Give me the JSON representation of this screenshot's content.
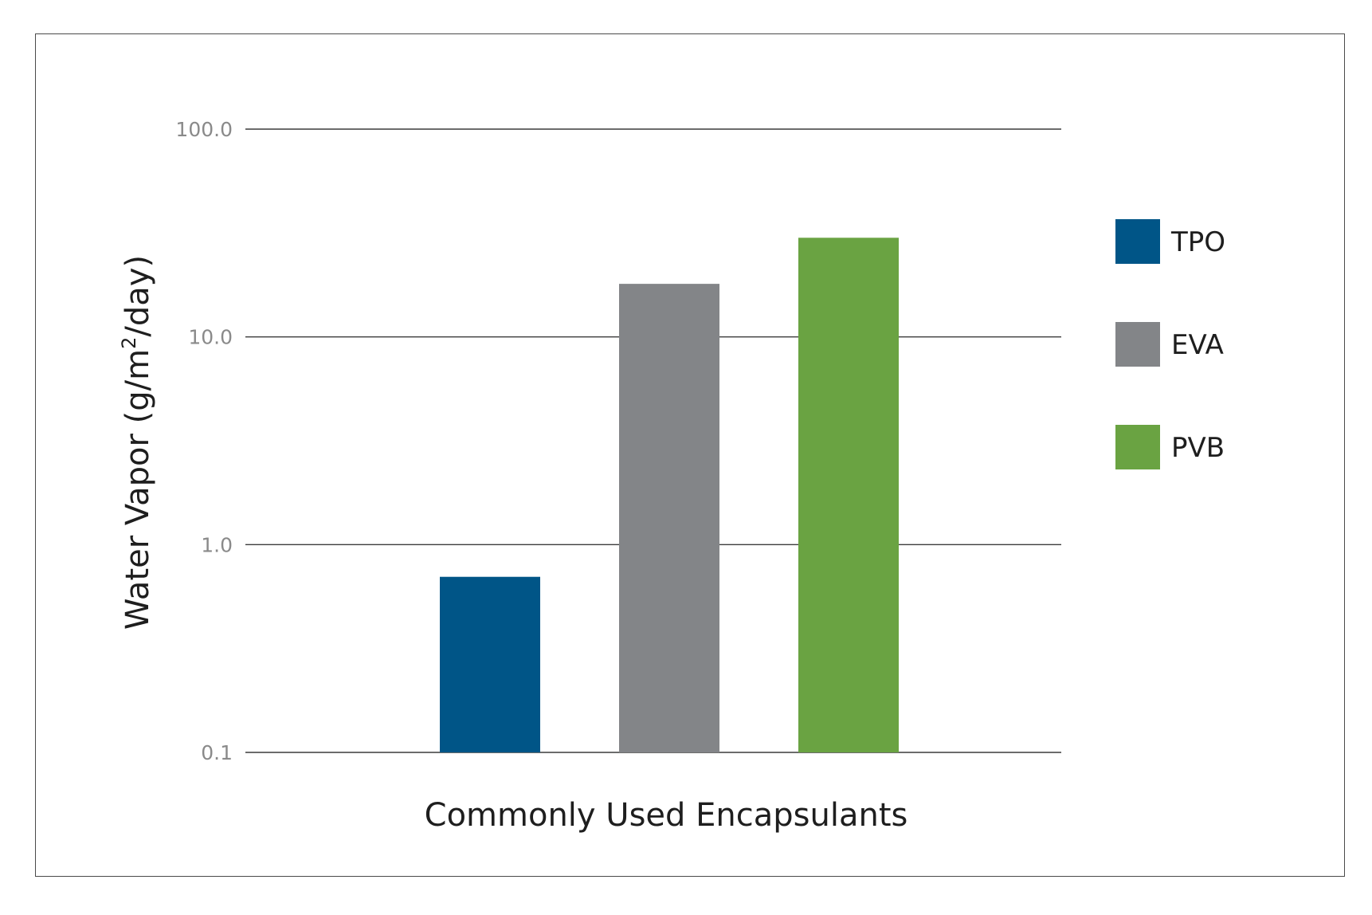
{
  "chart_data": {
    "type": "bar",
    "title": "",
    "xlabel": "Commonly Used Encapsulants",
    "ylabel_main": "Water Vapor (g/m",
    "ylabel_sup": "2",
    "ylabel_end": "/day)",
    "yscale": "log",
    "ylim": [
      0.1,
      100
    ],
    "yticks": [
      0.1,
      1,
      10,
      100
    ],
    "ytick_labels": [
      "0.1",
      "1.0",
      "10.0",
      "100.0"
    ],
    "grid": true,
    "legend_position": "right",
    "categories": [
      "TPO",
      "EVA",
      "PVB"
    ],
    "values": [
      0.7,
      18,
      30
    ],
    "colors": [
      "#005587",
      "#838588",
      "#6aa342"
    ]
  }
}
